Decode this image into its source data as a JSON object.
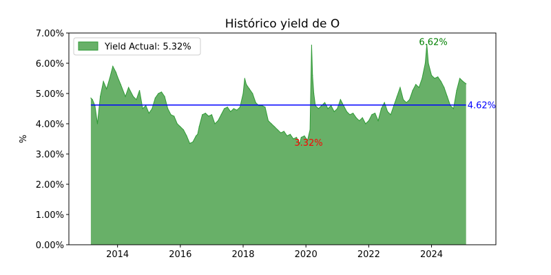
{
  "chart_data": {
    "type": "area",
    "title": "Histórico yield de O",
    "xlabel": "",
    "ylabel": "%",
    "xlim": [
      2012.45,
      2026.05
    ],
    "ylim": [
      0.0,
      7.0
    ],
    "x_ticks": [
      2014,
      2016,
      2018,
      2020,
      2022,
      2024
    ],
    "y_ticks": [
      0,
      1,
      2,
      3,
      4,
      5,
      6,
      7
    ],
    "y_tick_labels": [
      "0.00%",
      "1.00%",
      "2.00%",
      "3.00%",
      "4.00%",
      "5.00%",
      "6.00%",
      "7.00%"
    ],
    "grid": false,
    "legend_position": "upper-left",
    "series": [
      {
        "name": "Yield Actual: 5.32%",
        "color": "#2e9a35",
        "fill_color": "#68b068",
        "x": [
          2013.15,
          2013.2,
          2013.28,
          2013.36,
          2013.45,
          2013.55,
          2013.65,
          2013.75,
          2013.85,
          2013.95,
          2014.0,
          2014.1,
          2014.25,
          2014.35,
          2014.5,
          2014.6,
          2014.7,
          2014.8,
          2014.9,
          2015.0,
          2015.1,
          2015.2,
          2015.3,
          2015.4,
          2015.5,
          2015.6,
          2015.7,
          2015.8,
          2015.9,
          2016.0,
          2016.1,
          2016.2,
          2016.3,
          2016.4,
          2016.5,
          2016.55,
          2016.6,
          2016.7,
          2016.8,
          2016.9,
          2017.0,
          2017.1,
          2017.2,
          2017.3,
          2017.4,
          2017.5,
          2017.6,
          2017.7,
          2017.8,
          2017.9,
          2018.0,
          2018.05,
          2018.1,
          2018.2,
          2018.3,
          2018.4,
          2018.5,
          2018.6,
          2018.7,
          2018.8,
          2018.9,
          2019.0,
          2019.1,
          2019.2,
          2019.3,
          2019.4,
          2019.5,
          2019.6,
          2019.7,
          2019.8,
          2019.85,
          2019.95,
          2020.05,
          2020.13,
          2020.18,
          2020.21,
          2020.25,
          2020.3,
          2020.4,
          2020.5,
          2020.6,
          2020.7,
          2020.8,
          2020.9,
          2021.0,
          2021.1,
          2021.2,
          2021.3,
          2021.4,
          2021.5,
          2021.6,
          2021.7,
          2021.8,
          2021.9,
          2022.0,
          2022.1,
          2022.2,
          2022.3,
          2022.4,
          2022.5,
          2022.6,
          2022.7,
          2022.8,
          2022.9,
          2023.0,
          2023.1,
          2023.2,
          2023.3,
          2023.4,
          2023.5,
          2023.6,
          2023.7,
          2023.8,
          2023.85,
          2023.9,
          2024.0,
          2024.1,
          2024.2,
          2024.3,
          2024.4,
          2024.5,
          2024.6,
          2024.7,
          2024.8,
          2024.9,
          2025.0,
          2025.1
        ],
        "y": [
          4.85,
          4.8,
          4.6,
          4.0,
          4.9,
          5.4,
          5.15,
          5.5,
          5.9,
          5.7,
          5.55,
          5.3,
          4.9,
          5.2,
          4.9,
          4.8,
          5.1,
          4.5,
          4.6,
          4.35,
          4.5,
          4.85,
          5.0,
          5.05,
          4.9,
          4.5,
          4.3,
          4.25,
          4.0,
          3.9,
          3.8,
          3.6,
          3.35,
          3.4,
          3.6,
          3.65,
          3.9,
          4.3,
          4.35,
          4.25,
          4.3,
          4.0,
          4.1,
          4.3,
          4.5,
          4.55,
          4.4,
          4.5,
          4.45,
          4.55,
          5.0,
          5.5,
          5.3,
          5.15,
          5.0,
          4.7,
          4.6,
          4.6,
          4.55,
          4.1,
          4.0,
          3.9,
          3.8,
          3.7,
          3.75,
          3.6,
          3.65,
          3.5,
          3.55,
          3.35,
          3.55,
          3.6,
          3.45,
          3.8,
          6.6,
          5.6,
          5.0,
          4.6,
          4.5,
          4.6,
          4.7,
          4.5,
          4.6,
          4.4,
          4.5,
          4.8,
          4.6,
          4.4,
          4.3,
          4.35,
          4.2,
          4.1,
          4.2,
          4.0,
          4.1,
          4.3,
          4.35,
          4.1,
          4.5,
          4.7,
          4.4,
          4.3,
          4.6,
          4.9,
          5.2,
          4.8,
          4.7,
          4.8,
          5.1,
          5.3,
          5.2,
          5.5,
          6.0,
          6.62,
          6.0,
          5.6,
          5.5,
          5.55,
          5.4,
          5.2,
          4.9,
          4.6,
          4.5,
          5.1,
          5.5,
          5.4,
          5.32
        ]
      }
    ],
    "average": {
      "value": 4.62,
      "label": "4.62%",
      "color": "#0000ff"
    },
    "max_annotation": {
      "x": 2023.88,
      "value": 6.62,
      "label": "6.62%",
      "color": "#008000"
    },
    "min_annotation": {
      "x": 2019.82,
      "value": 3.32,
      "label": "3.32%",
      "color": "#ff0000"
    }
  }
}
